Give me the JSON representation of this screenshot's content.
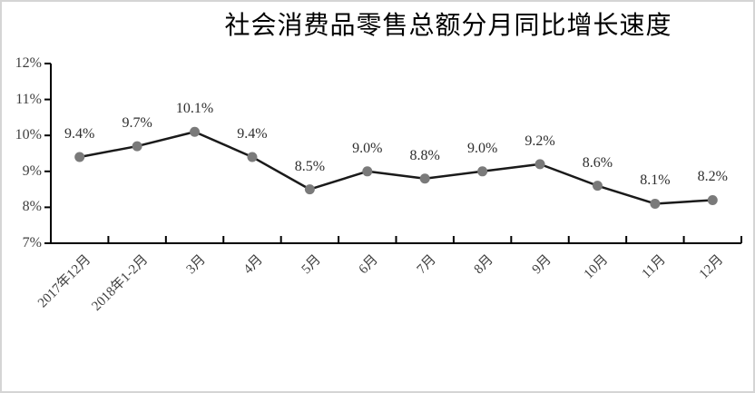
{
  "chart_data": {
    "type": "line",
    "title": "社会消费品零售总额分月同比增长速度",
    "categories": [
      "2017年12月",
      "2018年1-2月",
      "3月",
      "4月",
      "5月",
      "6月",
      "7月",
      "8月",
      "9月",
      "10月",
      "11月",
      "12月"
    ],
    "values": [
      9.4,
      9.7,
      10.1,
      9.4,
      8.5,
      9.0,
      8.8,
      9.0,
      9.2,
      8.6,
      8.1,
      8.2
    ],
    "data_labels": [
      "9.4%",
      "9.7%",
      "10.1%",
      "9.4%",
      "8.5%",
      "9.0%",
      "8.8%",
      "9.0%",
      "9.2%",
      "8.6%",
      "8.1%",
      "8.2%"
    ],
    "y_ticks": [
      "12%",
      "11%",
      "10%",
      "9%",
      "8%",
      "7%"
    ],
    "ylim": [
      7,
      12
    ],
    "y_step": 1,
    "xlabel": "",
    "ylabel": "",
    "grid": false,
    "legend": "none",
    "colors": {
      "line": "#1a1a1a",
      "marker": "#7a7a7a",
      "axis": "#000000",
      "data_label": "#2e2e2e",
      "tick_label": "#3f3f3f",
      "title": "#000000",
      "frame_border": "#d5d5d5",
      "background": "#ffffff"
    }
  }
}
